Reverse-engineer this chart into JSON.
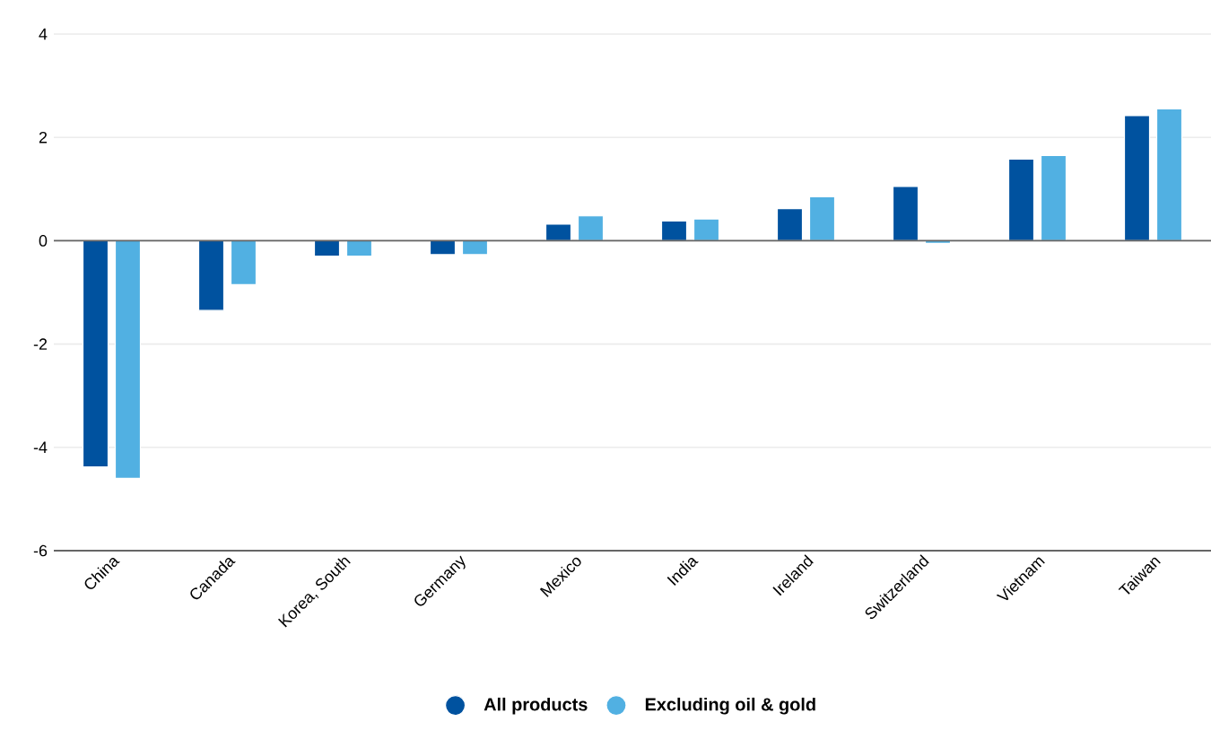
{
  "chart_data": {
    "type": "bar",
    "categories": [
      "China",
      "Canada",
      "Korea, South",
      "Germany",
      "Mexico",
      "India",
      "Ireland",
      "Switzerland",
      "Vietnam",
      "Taiwan"
    ],
    "series": [
      {
        "name": "All products",
        "color": "#00529f",
        "values": [
          -4.38,
          -1.35,
          -0.3,
          -0.27,
          0.32,
          0.38,
          0.62,
          1.05,
          1.58,
          2.42
        ]
      },
      {
        "name": "Excluding oil & gold",
        "color": "#51b0e2",
        "values": [
          -4.6,
          -0.85,
          -0.3,
          -0.27,
          0.48,
          0.42,
          0.85,
          -0.05,
          1.65,
          2.55
        ]
      }
    ],
    "ylim": [
      -6,
      4
    ],
    "yticks": [
      -6,
      -4,
      -2,
      0,
      2,
      4
    ],
    "grid": "y",
    "legend": "bottom"
  }
}
